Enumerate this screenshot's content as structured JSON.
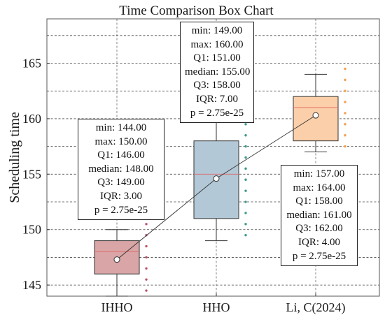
{
  "chart_data": {
    "type": "box",
    "title": "Time Comparison Box Chart",
    "xlabel": "",
    "ylabel": "Scheduling time",
    "ylim": [
      144,
      169
    ],
    "yticks": [
      145,
      150,
      155,
      160,
      165
    ],
    "grid": true,
    "categories": [
      "IHHO",
      "HHO",
      "Li, C(2024)"
    ],
    "boxes": [
      {
        "category": "IHHO",
        "min": 144,
        "max": 150,
        "q1": 146,
        "median": 148,
        "q3": 149,
        "mean": 147.3,
        "color": "#d9a5a6",
        "points": [
          150.5,
          149.5,
          148.5,
          147.5,
          146.5,
          145.5,
          144.5
        ],
        "point_color": "#c0506a"
      },
      {
        "category": "HHO",
        "min": 149,
        "max": 160,
        "q1": 151,
        "median": 155,
        "q3": 158,
        "mean": 154.6,
        "color": "#b3c8d6",
        "points": [
          159.5,
          158.5,
          157.5,
          156.5,
          155.5,
          154.5,
          153.5,
          152.5,
          151.5,
          150.5,
          149.5
        ],
        "point_color": "#3a9a8a"
      },
      {
        "category": "Li, C(2024)",
        "min": 157,
        "max": 164,
        "q1": 158,
        "median": 161,
        "q3": 162,
        "mean": 160.3,
        "color": "#fbcfa9",
        "points": [
          164.5,
          163.5,
          162.5,
          161.5,
          160.5,
          159.5,
          158.5,
          157.5
        ],
        "point_color": "#f0a050"
      }
    ],
    "annotations": [
      {
        "lines": [
          "min: 144.00",
          "max: 150.00",
          "Q1: 146.00",
          "median: 148.00",
          "Q3: 149.00",
          "IQR: 3.00",
          "p = 2.75e-25"
        ]
      },
      {
        "lines": [
          "min: 149.00",
          "max: 160.00",
          "Q1: 151.00",
          "median: 155.00",
          "Q3: 158.00",
          "IQR: 7.00",
          "p = 2.75e-25"
        ]
      },
      {
        "lines": [
          "min: 157.00",
          "max: 164.00",
          "Q1: 158.00",
          "median: 161.00",
          "Q3: 162.00",
          "IQR: 4.00",
          "p = 2.75e-25"
        ]
      }
    ],
    "colors": {
      "grid": "#bdbdbd",
      "axis": "#555555",
      "median": "#e06060",
      "mean_line": "#333333"
    }
  }
}
